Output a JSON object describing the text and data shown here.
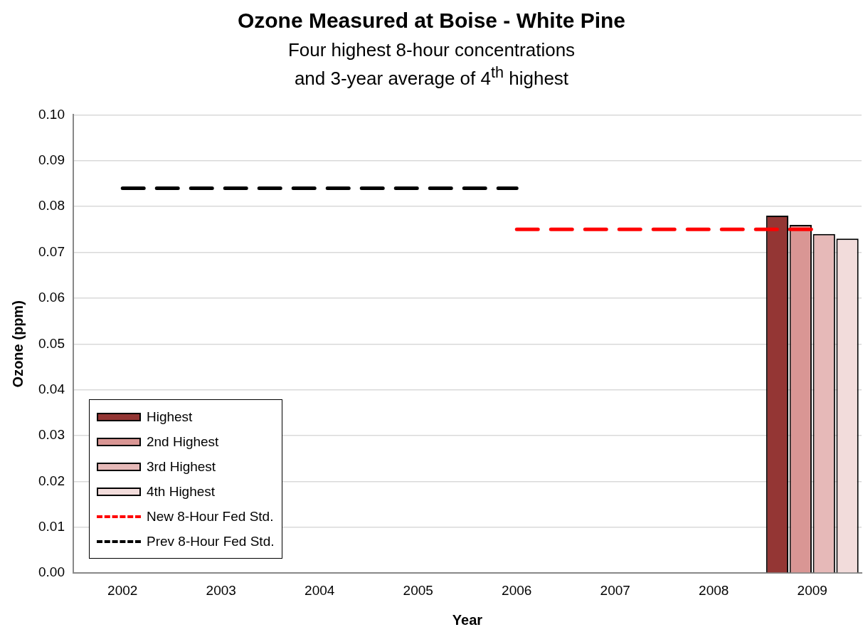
{
  "chart_data": {
    "type": "bar",
    "title": "Ozone Measured at Boise - White Pine",
    "subtitle": "Four highest 8-hour concentrations\nand 3-year average of 4$^{th}$ highest",
    "xlabel": "Year",
    "ylabel": "Ozone (ppm)",
    "categories": [
      "2002",
      "2003",
      "2004",
      "2005",
      "2006",
      "2007",
      "2008",
      "2009"
    ],
    "series": [
      {
        "name": "Highest",
        "color": "#943634",
        "values": [
          null,
          null,
          null,
          null,
          null,
          null,
          null,
          0.078
        ]
      },
      {
        "name": "2nd Highest",
        "color": "#d99694",
        "values": [
          null,
          null,
          null,
          null,
          null,
          null,
          null,
          0.076
        ]
      },
      {
        "name": "3rd Highest",
        "color": "#e6b9b8",
        "values": [
          null,
          null,
          null,
          null,
          null,
          null,
          null,
          0.074
        ]
      },
      {
        "name": "4th Highest",
        "color": "#f2dcdb",
        "values": [
          null,
          null,
          null,
          null,
          null,
          null,
          null,
          0.073
        ]
      },
      {
        "name": "New 8-Hour Fed Std.",
        "type": "line",
        "color": "#ff0000",
        "line_style": "dashed",
        "values": [
          null,
          null,
          null,
          null,
          0.075,
          0.075,
          0.075,
          0.075
        ]
      },
      {
        "name": "Prev 8-Hour Fed Std.",
        "type": "line",
        "color": "#000000",
        "line_style": "dashed",
        "values": [
          0.084,
          0.084,
          0.084,
          0.084,
          0.084,
          null,
          null,
          null
        ]
      }
    ],
    "ylim": [
      0,
      0.1
    ],
    "yticks": [
      {
        "value": 0,
        "label": "0.00"
      },
      {
        "value": 0.01,
        "label": "0.01"
      },
      {
        "value": 0.02,
        "label": "0.02"
      },
      {
        "value": 0.03,
        "label": "0.03"
      },
      {
        "value": 0.04,
        "label": "0.04"
      },
      {
        "value": 0.05,
        "label": "0.05"
      },
      {
        "value": 0.06,
        "label": "0.06"
      },
      {
        "value": 0.07,
        "label": "0.07"
      },
      {
        "value": 0.08,
        "label": "0.08"
      },
      {
        "value": 0.09,
        "label": "0.09"
      },
      {
        "value": 0.1,
        "label": "0.10"
      }
    ],
    "grid": "y",
    "legend": "bottom left",
    "marker": "none"
  }
}
